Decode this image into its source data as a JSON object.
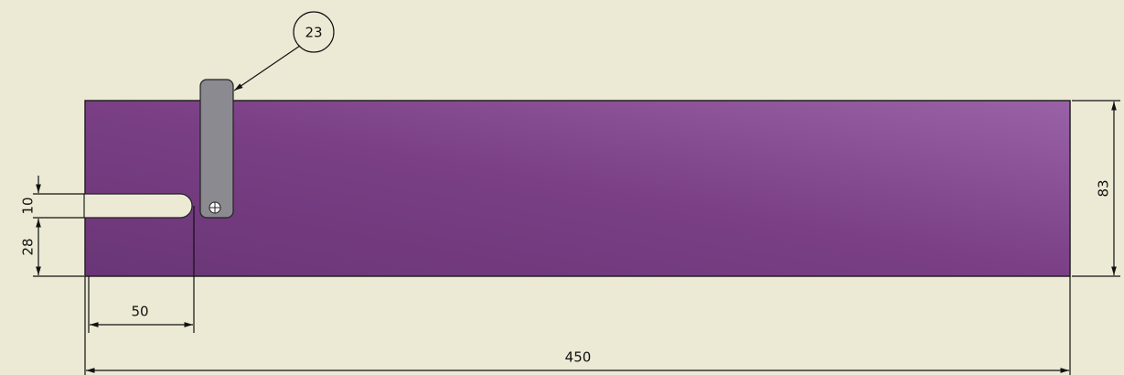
{
  "balloon": {
    "label": "23"
  },
  "dimensions": {
    "slot_width": "10",
    "slot_offset": "28",
    "slot_depth": "50",
    "length": "450",
    "height": "83"
  }
}
